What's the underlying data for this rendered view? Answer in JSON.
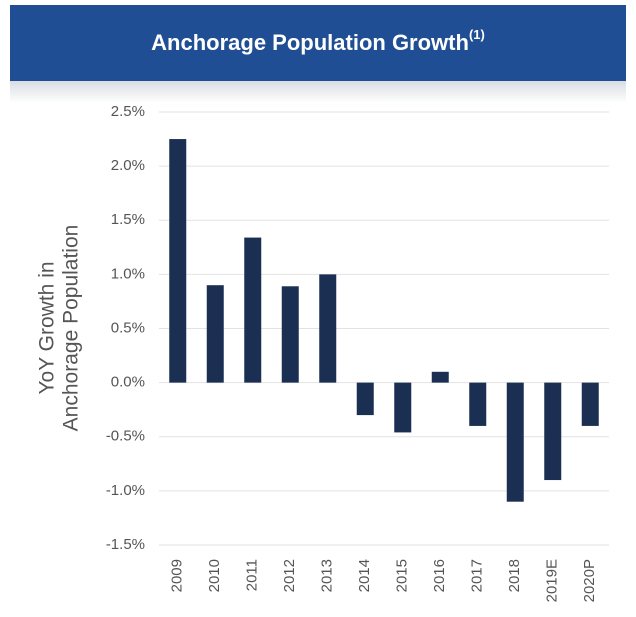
{
  "chart_data": {
    "type": "bar",
    "title": "Anchorage Population Growth",
    "title_superscript": "(1)",
    "y_label": [
      "YoY Growth in",
      "Anchorage Population"
    ],
    "categories": [
      "2009",
      "2010",
      "2011",
      "2012",
      "2013",
      "2014",
      "2015",
      "2016",
      "2017",
      "2018",
      "2019E",
      "2020P"
    ],
    "values": [
      2.25,
      0.9,
      1.34,
      0.89,
      1.0,
      -0.3,
      -0.46,
      0.1,
      -0.4,
      -1.1,
      -0.9,
      -0.4
    ],
    "color": "#1b2f52",
    "ylim": [
      -1.5,
      2.5
    ],
    "yticks": [
      {
        "value": -1.5,
        "label": "-1.5%"
      },
      {
        "value": -1.0,
        "label": "-1.0%"
      },
      {
        "value": -0.5,
        "label": "-0.5%"
      },
      {
        "value": 0.0,
        "label": "0.0%"
      },
      {
        "value": 0.5,
        "label": "0.5%"
      },
      {
        "value": 1.0,
        "label": "1.0%"
      },
      {
        "value": 1.5,
        "label": "1.5%"
      },
      {
        "value": 2.0,
        "label": "2.0%"
      },
      {
        "value": 2.5,
        "label": "2.5%"
      }
    ],
    "grid": true
  }
}
